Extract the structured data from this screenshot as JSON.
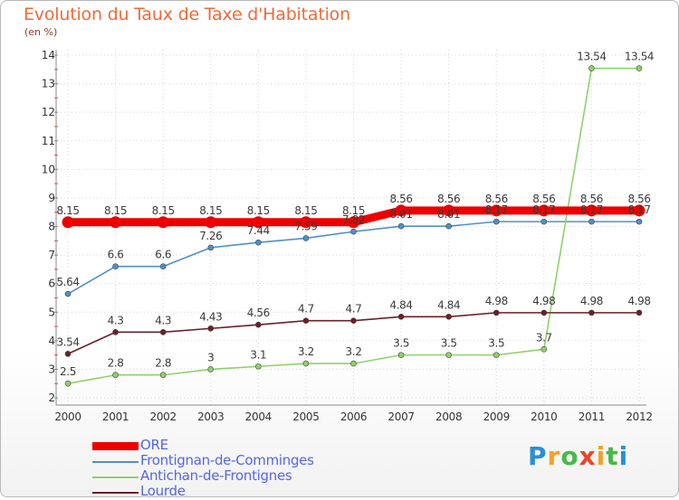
{
  "title": "Evolution du Taux de Taxe d'Habitation",
  "subtitle": "(en %)",
  "logo": {
    "letters": [
      "P",
      "r",
      "o",
      "x",
      "i",
      "t",
      "i"
    ],
    "colors": [
      "#2a8fd6",
      "#f3a12a",
      "#49b84a",
      "#e8452c",
      "#f3a12a",
      "#49b84a",
      "#2a8fd6"
    ]
  },
  "chart_data": {
    "type": "line",
    "title": "Evolution du Taux de Taxe d'Habitation",
    "ylabel": "(en %)",
    "xlabel": "",
    "x": [
      "2000",
      "2001",
      "2002",
      "2003",
      "2004",
      "2005",
      "2006",
      "2007",
      "2008",
      "2009",
      "2010",
      "2011",
      "2012"
    ],
    "ylim": [
      2,
      14
    ],
    "yticks": [
      "2",
      "3",
      "4",
      "5",
      "6",
      "7",
      "8",
      "9",
      "10",
      "11",
      "12",
      "13",
      "14"
    ],
    "grid": true,
    "legend_position": "bottom-left",
    "series": [
      {
        "name": "Frontignan-de-Comminges",
        "color": "#4f90c8",
        "values": [
          5.64,
          6.6,
          6.6,
          7.26,
          7.44,
          7.59,
          7.82,
          8.01,
          8.01,
          8.17,
          8.17,
          8.17,
          8.17
        ],
        "labels": [
          "5.64",
          "6.6",
          "6.6",
          "7.26",
          "7.44",
          "7.59",
          "7.82",
          "8.01",
          "8.01",
          "8.17",
          "8.17",
          "8.17",
          "8.17"
        ]
      },
      {
        "name": "Antichan-de-Frontignes",
        "color": "#8fd16b",
        "values": [
          2.5,
          2.8,
          2.8,
          3,
          3.1,
          3.2,
          3.2,
          3.5,
          3.5,
          3.5,
          3.7,
          13.54,
          13.54
        ],
        "labels": [
          "2.5",
          "2.8",
          "2.8",
          "3",
          "3.1",
          "3.2",
          "3.2",
          "3.5",
          "3.5",
          "3.5",
          "3.7",
          "13.54",
          "13.54"
        ]
      },
      {
        "name": "Lourde",
        "color": "#6b2026",
        "values": [
          3.54,
          4.3,
          4.3,
          4.43,
          4.56,
          4.7,
          4.7,
          4.84,
          4.84,
          4.98,
          4.98,
          4.98,
          4.98
        ],
        "labels": [
          "3.54",
          "4.3",
          "4.3",
          "4.43",
          "4.56",
          "4.7",
          "4.7",
          "4.84",
          "4.84",
          "4.98",
          "4.98",
          "4.98",
          "4.98"
        ]
      },
      {
        "name": "ORE",
        "color": "#ee0000",
        "values": [
          8.15,
          8.15,
          8.15,
          8.15,
          8.15,
          8.15,
          8.15,
          8.56,
          8.56,
          8.56,
          8.56,
          8.56,
          8.56
        ],
        "labels": [
          "8.15",
          "8.15",
          "8.15",
          "8.15",
          "8.15",
          "8.15",
          "8.15",
          "8.56",
          "8.56",
          "8.56",
          "8.56",
          "8.56",
          "8.56"
        ]
      }
    ],
    "legend": [
      "ORE",
      "Frontignan-de-Comminges",
      "Antichan-de-Frontignes",
      "Lourde"
    ]
  }
}
